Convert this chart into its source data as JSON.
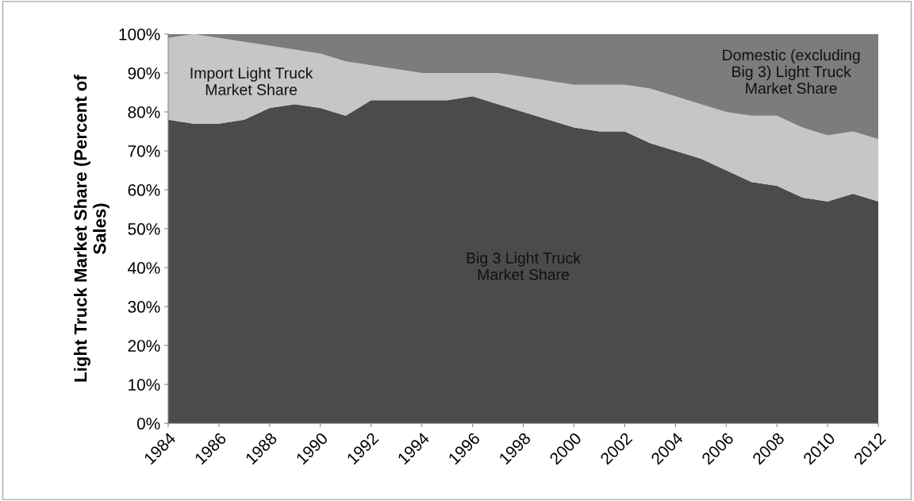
{
  "chart_data": {
    "type": "area",
    "stacked": true,
    "ylabel": "Light Truck Market Share (Percent of\nSales)",
    "x": [
      1984,
      1985,
      1986,
      1987,
      1988,
      1989,
      1990,
      1991,
      1992,
      1993,
      1994,
      1995,
      1996,
      1997,
      1998,
      1999,
      2000,
      2001,
      2002,
      2003,
      2004,
      2005,
      2006,
      2007,
      2008,
      2009,
      2010,
      2011,
      2012
    ],
    "series": [
      {
        "color": "#4b4b4b",
        "values": [
          78,
          77,
          77,
          78,
          81,
          82,
          81,
          79,
          83,
          83,
          83,
          83,
          84,
          82,
          80,
          78,
          76,
          75,
          75,
          72,
          70,
          68,
          65,
          62,
          61,
          58,
          57,
          59,
          57
        ]
      },
      {
        "color": "#c6c6c6",
        "values": [
          21,
          23,
          22,
          20,
          16,
          14,
          14,
          14,
          9,
          8,
          7,
          7,
          6,
          8,
          9,
          10,
          11,
          12,
          12,
          14,
          14,
          14,
          15,
          17,
          18,
          18,
          17,
          16,
          16
        ]
      },
      {
        "color": "#7c7c7c",
        "values": [
          1,
          0,
          1,
          2,
          3,
          4,
          5,
          7,
          8,
          9,
          10,
          10,
          10,
          10,
          11,
          12,
          13,
          13,
          13,
          14,
          16,
          18,
          20,
          21,
          21,
          24,
          26,
          25,
          27
        ]
      }
    ],
    "annotations": [
      "Import Light Truck\nMarket Share",
      "Big 3 Light Truck\nMarket Share",
      "Domestic (excluding\nBig 3) Light Truck\nMarket Share"
    ],
    "xlim": [
      1984,
      2012
    ],
    "xticks": [
      1984,
      1986,
      1988,
      1990,
      1992,
      1994,
      1996,
      1998,
      2000,
      2002,
      2004,
      2006,
      2008,
      2010,
      2012
    ],
    "ylim": [
      0,
      100
    ],
    "yticks": [
      {
        "value": 0,
        "label": "0%"
      },
      {
        "value": 10,
        "label": "10%"
      },
      {
        "value": 20,
        "label": "20%"
      },
      {
        "value": 30,
        "label": "30%"
      },
      {
        "value": 40,
        "label": "40%"
      },
      {
        "value": 50,
        "label": "50%"
      },
      {
        "value": 60,
        "label": "60%"
      },
      {
        "value": 70,
        "label": "70%"
      },
      {
        "value": 80,
        "label": "80%"
      },
      {
        "value": 90,
        "label": "90%"
      },
      {
        "value": 100,
        "label": "100%"
      }
    ],
    "grid": false
  }
}
